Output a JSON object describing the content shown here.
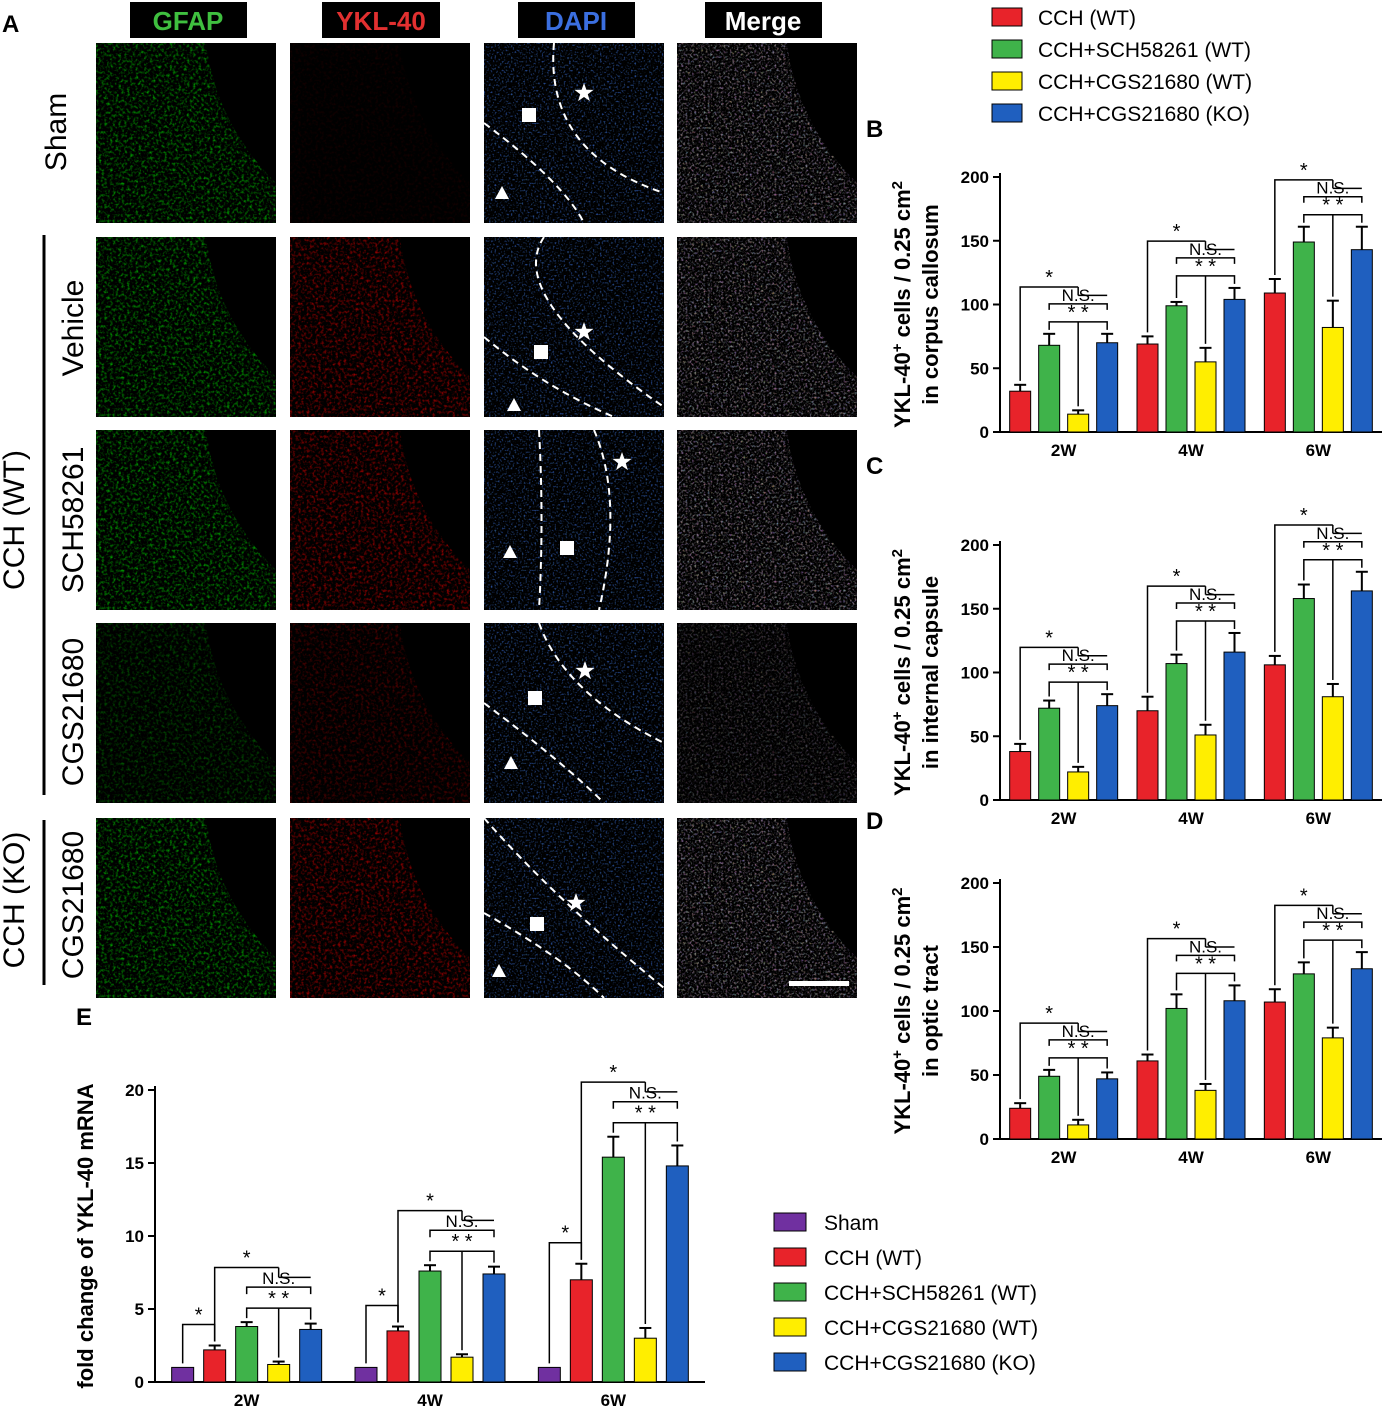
{
  "panel_a": {
    "letter": "A",
    "columns": [
      {
        "label": "GFAP",
        "color": "#3fbf3f"
      },
      {
        "label": "YKL-40",
        "color": "#e23030"
      },
      {
        "label": "DAPI",
        "color": "#3b6fe0"
      },
      {
        "label": "Merge",
        "color": "#ffffff"
      }
    ],
    "rows": [
      "Sham",
      "Vehicle",
      "SCH58261",
      "CGS21680",
      "CGS21680"
    ],
    "group_labels": [
      "CCH (WT)",
      "CCH (KO)"
    ]
  },
  "legend_top": [
    "CCH (WT)",
    "CCH+SCH58261 (WT)",
    "CCH+CGS21680 (WT)",
    "CCH+CGS21680 (KO)"
  ],
  "legend_bottom": [
    "Sham",
    "CCH (WT)",
    "CCH+SCH58261 (WT)",
    "CCH+CGS21680 (WT)",
    "CCH+CGS21680 (KO)"
  ],
  "colors": {
    "sham": "#7030a0",
    "cch": "#e8232a",
    "sch": "#3fb34a",
    "cgs_wt": "#ffee00",
    "cgs_ko": "#1f5fbf"
  },
  "significance": {
    "star": "*",
    "ns": "N.S.",
    "double_star": "* *"
  },
  "chart_data": [
    {
      "type": "bar",
      "panel": "B",
      "ylabel_line1": "YKL-40",
      "ylabel_sup": "+",
      "ylabel_line1b": " cells / 0.25 cm",
      "ylabel_sup2": "2",
      "ylabel_line2": "in corpus callosum",
      "categories": [
        "2W",
        "4W",
        "6W"
      ],
      "ylim": [
        0,
        200
      ],
      "yticks": [
        "0",
        "50",
        "100",
        "150",
        "200"
      ],
      "series": [
        {
          "values": [
            32,
            69,
            109
          ],
          "errors": [
            5,
            6,
            11
          ]
        },
        {
          "values": [
            68,
            99,
            149
          ],
          "errors": [
            9,
            3,
            12
          ]
        },
        {
          "values": [
            14,
            55,
            82
          ],
          "errors": [
            3,
            11,
            21
          ]
        },
        {
          "values": [
            70,
            104,
            143
          ],
          "errors": [
            7,
            9,
            18
          ]
        }
      ]
    },
    {
      "type": "bar",
      "panel": "C",
      "ylabel_line1": "YKL-40",
      "ylabel_sup": "+",
      "ylabel_line1b": " cells / 0.25 cm",
      "ylabel_sup2": "2",
      "ylabel_line2": "in internal capsule",
      "categories": [
        "2W",
        "4W",
        "6W"
      ],
      "ylim": [
        0,
        200
      ],
      "yticks": [
        "0",
        "50",
        "100",
        "150",
        "200"
      ],
      "series": [
        {
          "values": [
            38,
            70,
            106
          ],
          "errors": [
            6,
            11,
            7
          ]
        },
        {
          "values": [
            72,
            107,
            158
          ],
          "errors": [
            6,
            7,
            11
          ]
        },
        {
          "values": [
            22,
            51,
            81
          ],
          "errors": [
            4,
            8,
            10
          ]
        },
        {
          "values": [
            74,
            116,
            164
          ],
          "errors": [
            9,
            15,
            15
          ]
        }
      ]
    },
    {
      "type": "bar",
      "panel": "D",
      "ylabel_line1": "YKL-40",
      "ylabel_sup": "+",
      "ylabel_line1b": " cells / 0.25 cm",
      "ylabel_sup2": "2",
      "ylabel_line2": "in optic tract",
      "categories": [
        "2W",
        "4W",
        "6W"
      ],
      "ylim": [
        0,
        200
      ],
      "yticks": [
        "0",
        "50",
        "100",
        "150",
        "200"
      ],
      "series": [
        {
          "values": [
            24,
            61,
            107
          ],
          "errors": [
            4,
            5,
            10
          ]
        },
        {
          "values": [
            49,
            102,
            129
          ],
          "errors": [
            5,
            11,
            9
          ]
        },
        {
          "values": [
            11,
            38,
            79
          ],
          "errors": [
            4,
            5,
            8
          ]
        },
        {
          "values": [
            47,
            108,
            133
          ],
          "errors": [
            5,
            12,
            13
          ]
        }
      ]
    },
    {
      "type": "bar",
      "panel": "E",
      "ylabel": "fold change of YKL-40 mRNA",
      "categories": [
        "2W",
        "4W",
        "6W"
      ],
      "ylim": [
        0,
        20
      ],
      "yticks": [
        "0",
        "5",
        "10",
        "15",
        "20"
      ],
      "series": [
        {
          "values": [
            1.0,
            1.0,
            1.0
          ],
          "errors": [
            0,
            0,
            0
          ]
        },
        {
          "values": [
            2.2,
            3.5,
            7.0
          ],
          "errors": [
            0.3,
            0.3,
            1.1
          ]
        },
        {
          "values": [
            3.8,
            7.6,
            15.4
          ],
          "errors": [
            0.3,
            0.4,
            1.4
          ]
        },
        {
          "values": [
            1.2,
            1.7,
            3.0
          ],
          "errors": [
            0.2,
            0.2,
            0.7
          ]
        },
        {
          "values": [
            3.6,
            7.4,
            14.8
          ],
          "errors": [
            0.4,
            0.5,
            1.4
          ]
        }
      ]
    }
  ]
}
